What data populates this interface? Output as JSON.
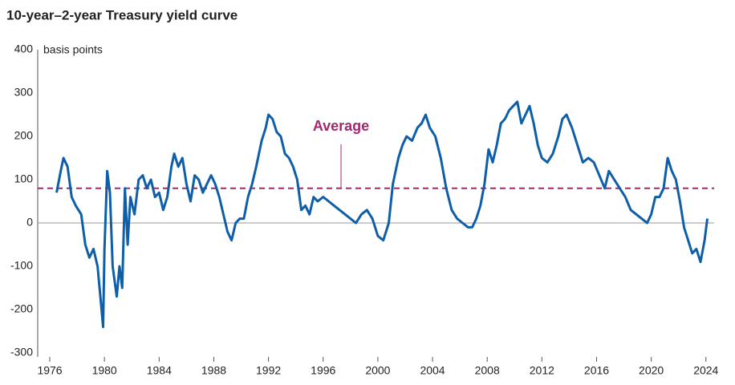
{
  "chart_data": {
    "type": "line",
    "title": "10-year–2-year Treasury yield curve",
    "y_label": "basis points",
    "x": [
      1976.5,
      1976.8,
      1977.0,
      1977.3,
      1977.6,
      1977.9,
      1978.3,
      1978.6,
      1978.9,
      1979.2,
      1979.5,
      1979.7,
      1979.9,
      1980.0,
      1980.2,
      1980.4,
      1980.6,
      1980.9,
      1981.1,
      1981.3,
      1981.5,
      1981.7,
      1981.9,
      1982.2,
      1982.5,
      1982.8,
      1983.1,
      1983.4,
      1983.7,
      1984.0,
      1984.3,
      1984.6,
      1984.9,
      1985.1,
      1985.4,
      1985.7,
      1986.0,
      1986.3,
      1986.6,
      1986.9,
      1987.2,
      1987.5,
      1987.8,
      1988.1,
      1988.4,
      1988.7,
      1989.0,
      1989.3,
      1989.6,
      1989.9,
      1990.2,
      1990.5,
      1990.8,
      1991.1,
      1991.5,
      1991.8,
      1992.0,
      1992.3,
      1992.6,
      1992.9,
      1993.2,
      1993.5,
      1993.8,
      1994.1,
      1994.4,
      1994.7,
      1995.0,
      1995.3,
      1995.6,
      1996.0,
      1996.4,
      1996.8,
      1997.2,
      1997.6,
      1998.0,
      1998.4,
      1998.8,
      1999.2,
      1999.6,
      2000.0,
      2000.4,
      2000.8,
      2001.1,
      2001.5,
      2001.8,
      2002.1,
      2002.5,
      2002.9,
      2003.2,
      2003.5,
      2003.8,
      2004.2,
      2004.6,
      2005.0,
      2005.4,
      2005.8,
      2006.2,
      2006.6,
      2006.9,
      2007.2,
      2007.5,
      2007.8,
      2008.1,
      2008.4,
      2008.7,
      2009.0,
      2009.3,
      2009.6,
      2009.9,
      2010.2,
      2010.5,
      2010.8,
      2011.1,
      2011.4,
      2011.7,
      2012.0,
      2012.4,
      2012.8,
      2013.2,
      2013.5,
      2013.8,
      2014.2,
      2014.6,
      2015.0,
      2015.4,
      2015.8,
      2016.2,
      2016.6,
      2016.9,
      2017.3,
      2017.7,
      2018.1,
      2018.5,
      2018.9,
      2019.3,
      2019.7,
      2020.0,
      2020.3,
      2020.6,
      2020.9,
      2021.2,
      2021.5,
      2021.8,
      2022.1,
      2022.4,
      2022.7,
      2023.0,
      2023.3,
      2023.6,
      2023.9,
      2024.1
    ],
    "series": [
      {
        "name": "10-year–2-year spread",
        "color": "#0f5ea8",
        "values": [
          70,
          120,
          150,
          130,
          60,
          40,
          20,
          -50,
          -80,
          -60,
          -100,
          -170,
          -240,
          -60,
          120,
          70,
          -100,
          -170,
          -100,
          -150,
          80,
          -50,
          60,
          20,
          100,
          110,
          80,
          100,
          60,
          70,
          30,
          60,
          130,
          160,
          130,
          150,
          90,
          50,
          110,
          100,
          70,
          90,
          110,
          90,
          60,
          20,
          -20,
          -40,
          0,
          10,
          10,
          60,
          90,
          130,
          190,
          220,
          250,
          240,
          210,
          200,
          160,
          150,
          130,
          100,
          30,
          40,
          20,
          60,
          50,
          60,
          50,
          40,
          30,
          20,
          10,
          0,
          20,
          30,
          10,
          -30,
          -40,
          0,
          90,
          150,
          180,
          200,
          190,
          220,
          230,
          250,
          220,
          200,
          150,
          80,
          30,
          10,
          0,
          -10,
          -10,
          10,
          40,
          90,
          170,
          140,
          180,
          230,
          240,
          260,
          270,
          280,
          230,
          250,
          270,
          230,
          180,
          150,
          140,
          160,
          200,
          240,
          250,
          220,
          180,
          140,
          150,
          140,
          110,
          80,
          120,
          100,
          80,
          60,
          30,
          20,
          10,
          0,
          20,
          60,
          60,
          80,
          150,
          120,
          100,
          50,
          -10,
          -40,
          -70,
          -60,
          -90,
          -40,
          10
        ]
      }
    ],
    "average": {
      "label": "Average",
      "value": 80,
      "color": "#a3286e"
    },
    "xlim": [
      1975.4,
      2024.6
    ],
    "xticks": [
      1976,
      1980,
      1984,
      1988,
      1992,
      1996,
      2000,
      2004,
      2008,
      2012,
      2016,
      2020,
      2024
    ],
    "ylim": [
      -300,
      400
    ],
    "yticks": [
      -300,
      -200,
      -100,
      0,
      100,
      200,
      300,
      400
    ],
    "grid": false
  }
}
